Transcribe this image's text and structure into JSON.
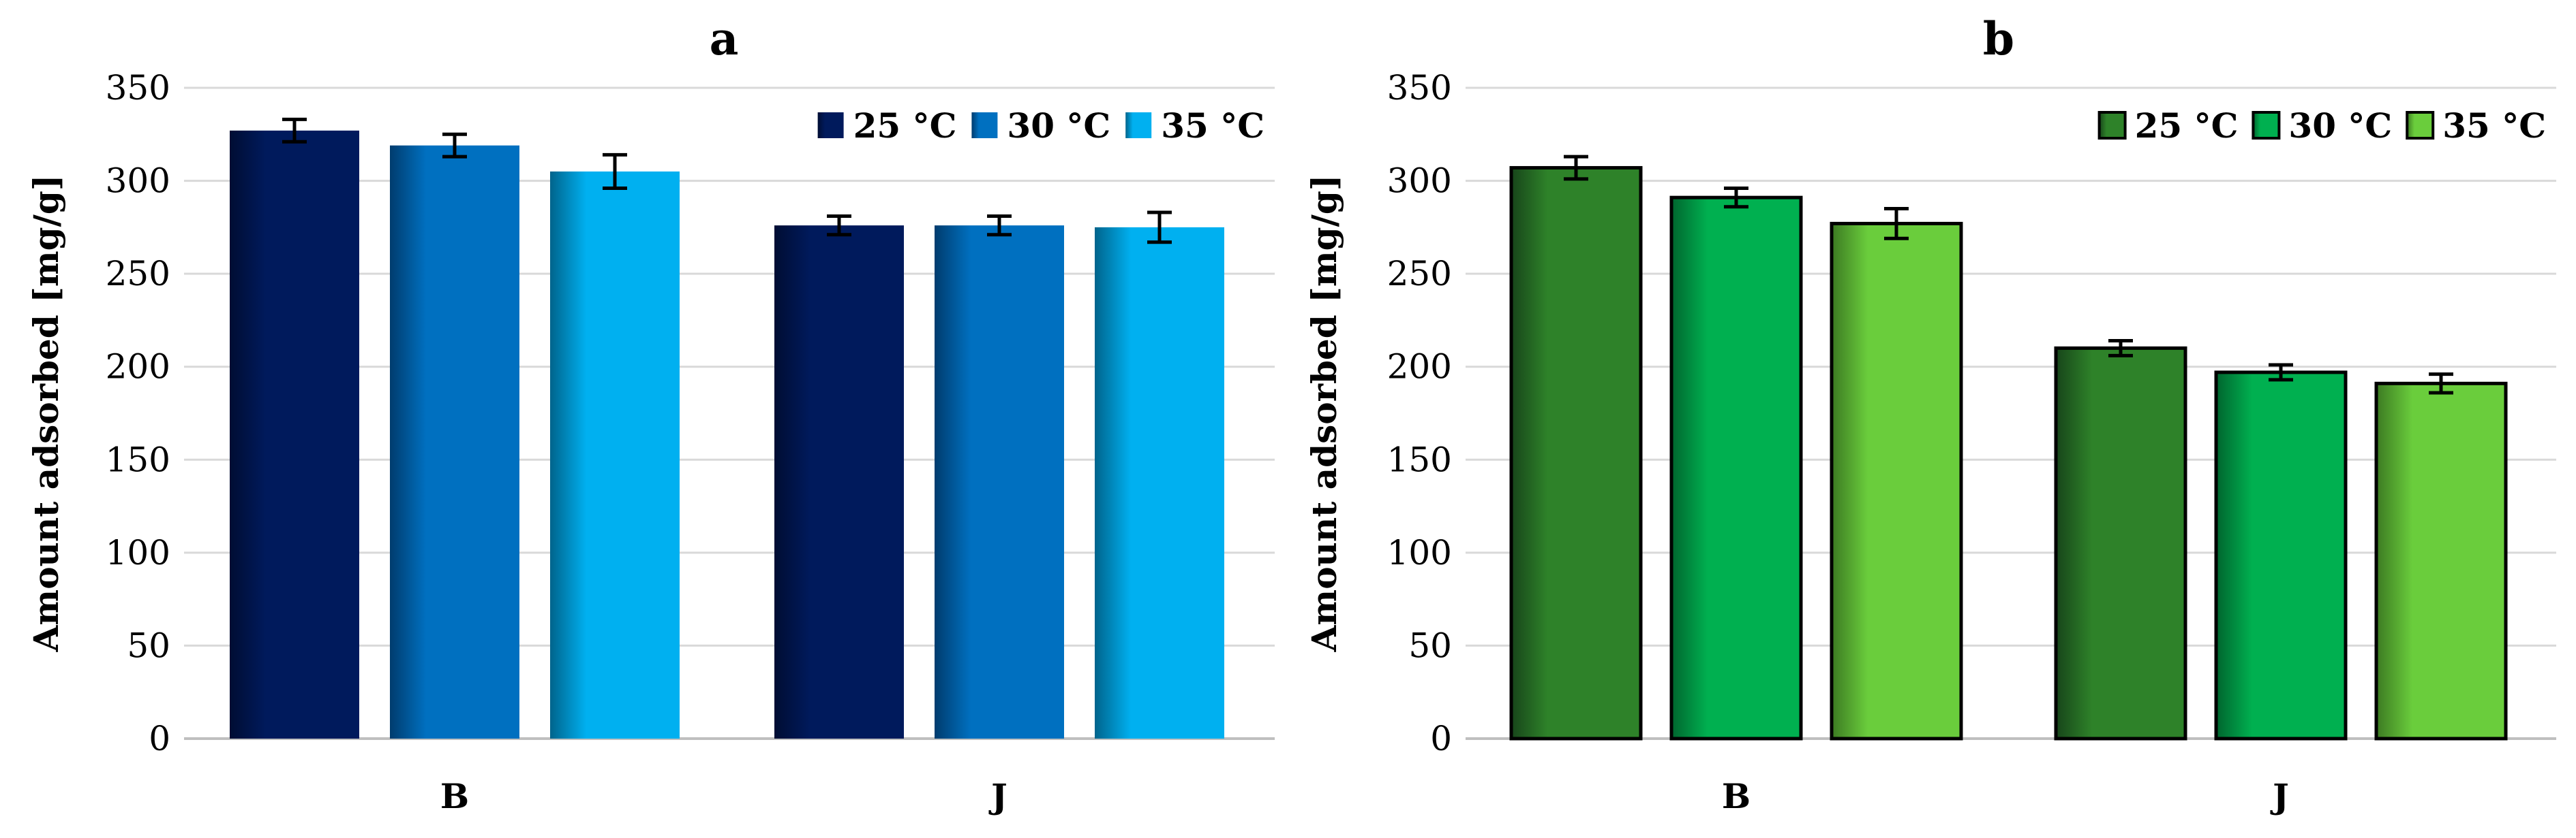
{
  "chart_data": [
    {
      "type": "bar",
      "title": "a",
      "xlabel": "",
      "ylabel": "Amount adsorbed [mg/g]",
      "ylim": [
        0,
        350
      ],
      "yticks": [
        0,
        50,
        100,
        150,
        200,
        250,
        300,
        350
      ],
      "categories": [
        "B",
        "J"
      ],
      "grid": true,
      "legend_position": "top-right",
      "series": [
        {
          "name": "25 °C",
          "values": [
            327,
            276
          ],
          "errors": [
            6,
            5
          ],
          "color": "#001a5c",
          "shade": "#000d33"
        },
        {
          "name": "30 °C",
          "values": [
            319,
            276
          ],
          "errors": [
            6,
            5
          ],
          "color": "#0070c0",
          "shade": "#003c6e"
        },
        {
          "name": "35 °C",
          "values": [
            305,
            275
          ],
          "errors": [
            9,
            8
          ],
          "color": "#00b0f0",
          "shade": "#00648c"
        }
      ]
    },
    {
      "type": "bar",
      "title": "b",
      "xlabel": "",
      "ylabel": "Amount adsorbed [mg/g]",
      "ylim": [
        0,
        350
      ],
      "yticks": [
        0,
        50,
        100,
        150,
        200,
        250,
        300,
        350
      ],
      "categories": [
        "B",
        "J"
      ],
      "grid": true,
      "legend_position": "top-right",
      "series": [
        {
          "name": "25 °C",
          "values": [
            307,
            210
          ],
          "errors": [
            6,
            4
          ],
          "color": "#2e8229",
          "shade": "#17451a"
        },
        {
          "name": "30 °C",
          "values": [
            291,
            197
          ],
          "errors": [
            5,
            4
          ],
          "color": "#00b050",
          "shade": "#00652e"
        },
        {
          "name": "35 °C",
          "values": [
            277,
            191
          ],
          "errors": [
            8,
            5
          ],
          "color": "#6acd3c",
          "shade": "#3c7a22"
        }
      ]
    }
  ]
}
